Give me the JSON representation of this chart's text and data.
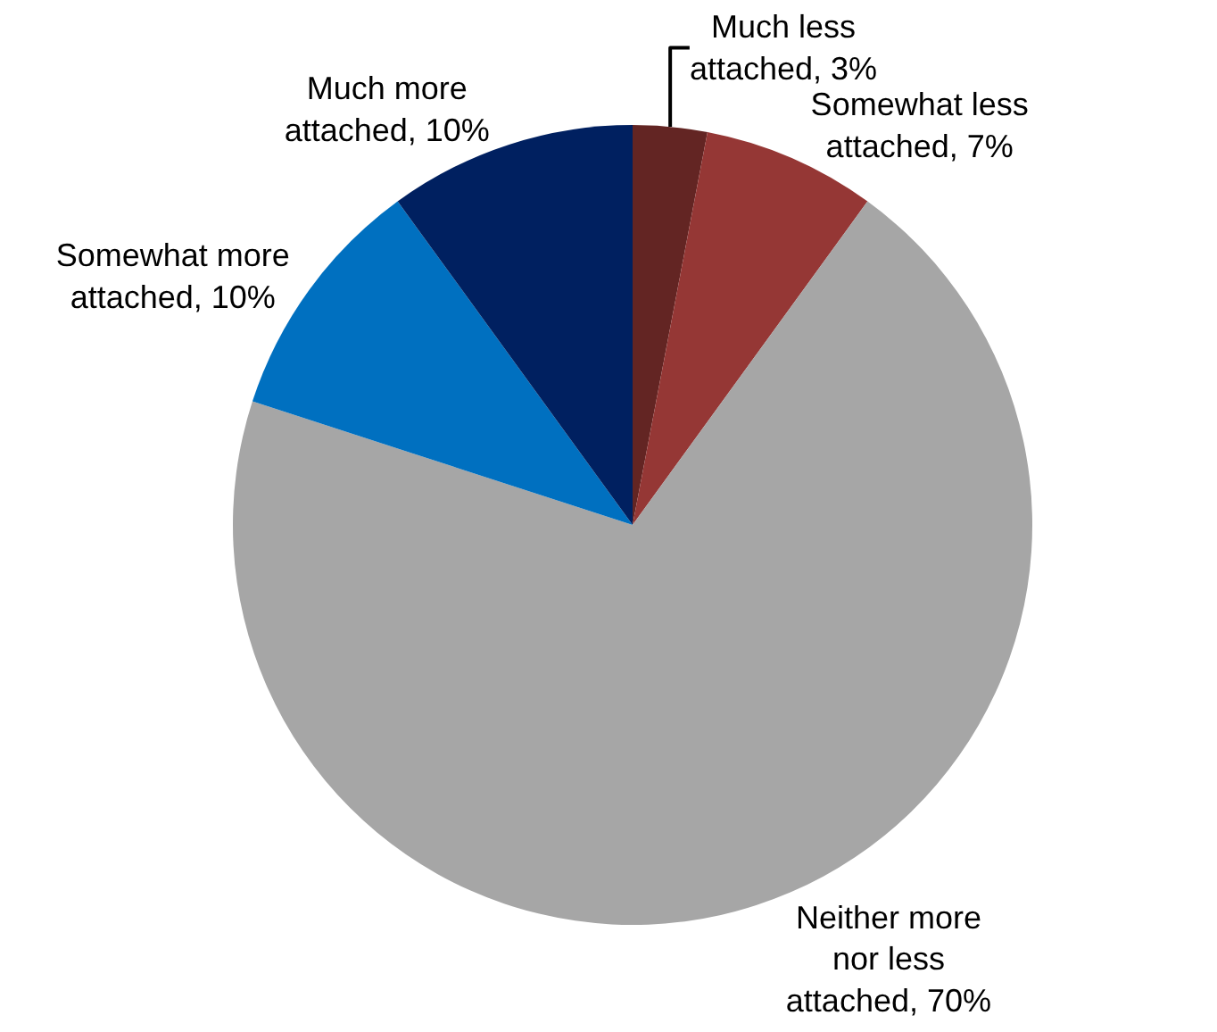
{
  "chart_data": {
    "type": "pie",
    "categories": [
      "Much less attached, 3%",
      "Somewhat less attached, 7%",
      "Neither more nor less attached, 70%",
      "Somewhat more attached, 10%",
      "Much more attached, 10%"
    ],
    "values": [
      3,
      7,
      70,
      10,
      10
    ],
    "colors": [
      "#632523",
      "#953735",
      "#a6a6a6",
      "#0070c0",
      "#002060"
    ]
  }
}
